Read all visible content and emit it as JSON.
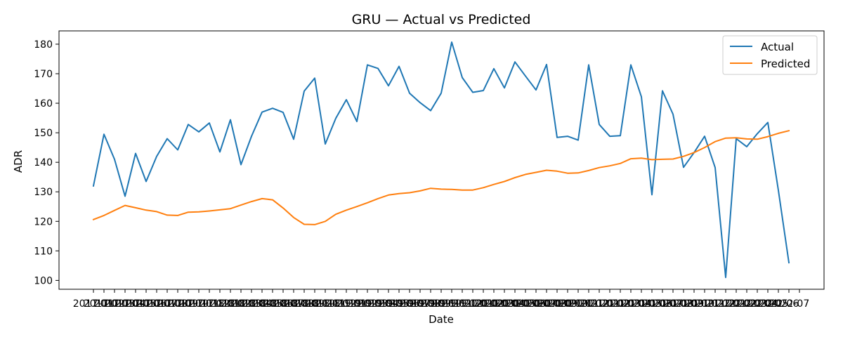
{
  "chart_data": {
    "type": "line",
    "title": "GRU — Actual vs Predicted",
    "xlabel": "Date",
    "ylabel": "ADR",
    "ylim": [
      97,
      184.5
    ],
    "yticks": [
      100,
      110,
      120,
      130,
      140,
      150,
      160,
      170,
      180
    ],
    "x_tick_labels_note": "overlapping date labels",
    "x_tick_labels_visible": [
      "2017",
      "2019-11-3",
      "14"
    ],
    "x": [
      "2017-01",
      "2017-02",
      "2017-03",
      "2017-04",
      "2017-05",
      "2017-06",
      "2017-07",
      "2017-08",
      "2017-09",
      "2017-10",
      "2017-11",
      "2017-12",
      "2018-01",
      "2018-02",
      "2018-03",
      "2018-04",
      "2018-05",
      "2018-06",
      "2018-07",
      "2018-08",
      "2018-09",
      "2018-10",
      "2018-11",
      "2018-12",
      "2019-01",
      "2019-02",
      "2019-03",
      "2019-04",
      "2019-05",
      "2019-06",
      "2019-07",
      "2019-08",
      "2019-09",
      "2019-10",
      "2019-11",
      "2019-12",
      "2020-01",
      "2020-02",
      "2020-03",
      "2020-04",
      "2020-05",
      "2020-06",
      "2020-07",
      "2020-08",
      "2020-09",
      "2020-10",
      "2020-11",
      "2020-12",
      "2021-01",
      "2021-02",
      "2021-03",
      "2021-04",
      "2021-05",
      "2021-06",
      "2021-07",
      "2021-08",
      "2021-09",
      "2021-10",
      "2021-11",
      "2021-12",
      "2022-01",
      "2022-02",
      "2022-03",
      "2022-04",
      "2022-05",
      "2022-06",
      "2022-07"
    ],
    "series": [
      {
        "name": "Actual",
        "color": "#1f77b4",
        "values": [
          132,
          149.5,
          141,
          128.5,
          143,
          133.5,
          142,
          148,
          144.2,
          152.8,
          150.3,
          153.3,
          143.5,
          154.4,
          139.2,
          148.8,
          157,
          158.3,
          156.9,
          147.8,
          164.1,
          168.5,
          146.2,
          154.9,
          161.2,
          153.8,
          173,
          171.8,
          165.9,
          172.5,
          163.4,
          160.2,
          157.5,
          163.4,
          180.7,
          168.7,
          163.7,
          164.3,
          171.7,
          165.2,
          174,
          169.2,
          164.5,
          173.1,
          148.4,
          148.8,
          147.5,
          173,
          152.8,
          148.8,
          149,
          173,
          162.2,
          129,
          164.2,
          156.3,
          138.3,
          143.3,
          148.8,
          138.2,
          101,
          148,
          145.3,
          149.7,
          153.5,
          130.5,
          106
        ]
      },
      {
        "name": "Predicted",
        "color": "#ff7f0e",
        "values": [
          120.6,
          122,
          123.7,
          125.4,
          124.6,
          123.8,
          123.3,
          122.1,
          122,
          123.1,
          123.2,
          123.5,
          123.9,
          124.3,
          125.5,
          126.7,
          127.7,
          127.3,
          124.5,
          121.3,
          119,
          118.9,
          120,
          122.4,
          123.8,
          125,
          126.3,
          127.7,
          128.9,
          129.4,
          129.7,
          130.3,
          131.2,
          130.9,
          130.8,
          130.6,
          130.6,
          131.4,
          132.5,
          133.5,
          134.8,
          135.9,
          136.6,
          137.3,
          137,
          136.3,
          136.4,
          137.2,
          138.2,
          138.8,
          139.6,
          141.2,
          141.4,
          140.9,
          141,
          141.1,
          142,
          143.3,
          145,
          147,
          148.2,
          148.3,
          147.9,
          147.8,
          148.7,
          149.8,
          150.7
        ]
      }
    ],
    "legend": {
      "position": "top-right",
      "labels": [
        "Actual",
        "Predicted"
      ]
    },
    "grid": false
  }
}
